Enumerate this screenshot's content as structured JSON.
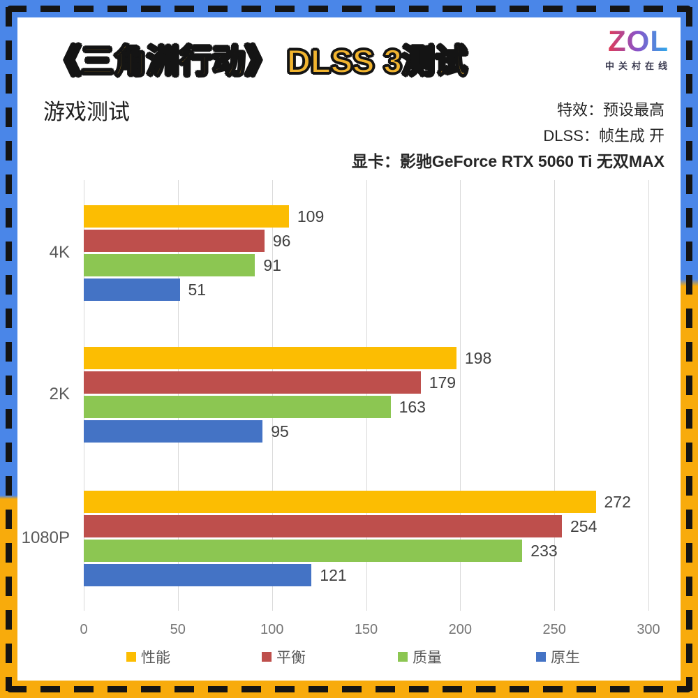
{
  "frame": {
    "border_blue": "#4a86e8",
    "border_gold": "#f8ab0c",
    "dash_color": "#141414"
  },
  "header": {
    "title": "《三角洲行动》 DLSS 3测试",
    "title_color": "#f1b42f",
    "logo_text": "ZOL",
    "logo_caption": "中关村在线",
    "section_title": "游戏测试",
    "info_lines": [
      "特效：预设最高",
      "DLSS：帧生成 开",
      "显卡：影驰GeForce RTX 5060 Ti 无双MAX"
    ]
  },
  "chart_data": {
    "type": "bar",
    "orientation": "horizontal",
    "title": "《三角洲行动》 DLSS 3测试",
    "categories": [
      "4K",
      "2K",
      "1080P"
    ],
    "series": [
      {
        "name": "性能",
        "color": "#fcbd02",
        "values": [
          109,
          198,
          272
        ]
      },
      {
        "name": "平衡",
        "color": "#be4f4c",
        "values": [
          96,
          179,
          254
        ]
      },
      {
        "name": "质量",
        "color": "#8cc652",
        "values": [
          91,
          163,
          233
        ]
      },
      {
        "name": "原生",
        "color": "#4473c5",
        "values": [
          51,
          95,
          121
        ]
      }
    ],
    "xlim": [
      0,
      300
    ],
    "xticks": [
      0,
      50,
      100,
      150,
      200,
      250,
      300
    ],
    "grid": true,
    "gridline_color": "#d9d9d9",
    "legend_position": "bottom",
    "value_labels": true
  }
}
